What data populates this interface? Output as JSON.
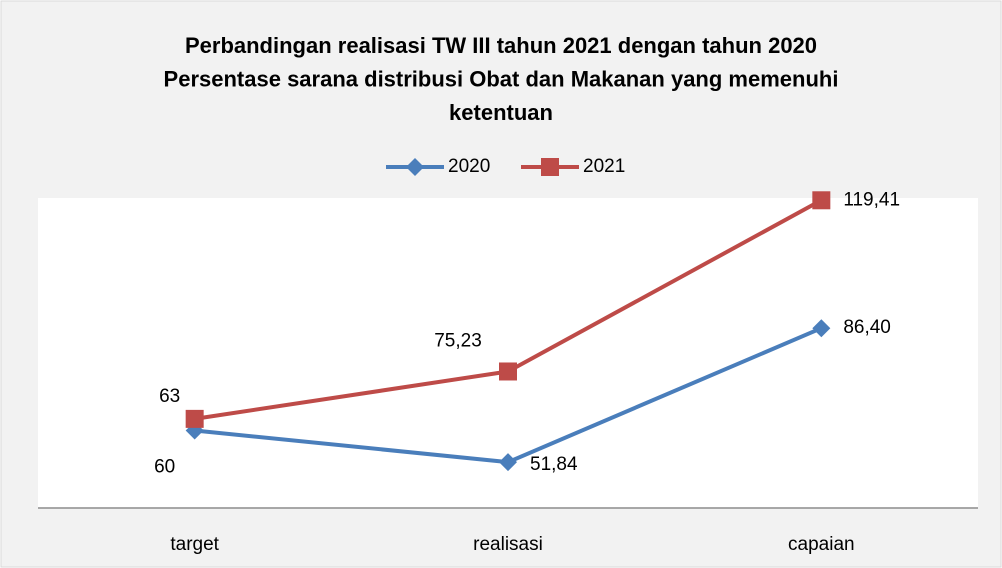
{
  "chart_data": {
    "type": "line",
    "title": [
      "Perbandingan realisasi TW III tahun 2021 dengan tahun 2020",
      "Persentase sarana distribusi Obat dan Makanan yang memenuhi",
      "ketentuan"
    ],
    "categories": [
      "target",
      "realisasi",
      "capaian"
    ],
    "series": [
      {
        "name": "2020",
        "color": "#4a7ebb",
        "marker": "diamond",
        "values": [
          60,
          51.84,
          86.4
        ],
        "value_labels": [
          "60",
          "51,84",
          "86,40"
        ]
      },
      {
        "name": "2021",
        "color": "#be4b48",
        "marker": "square",
        "values": [
          63,
          75.23,
          119.41
        ],
        "value_labels": [
          "63",
          "75,23",
          "119,41"
        ]
      }
    ],
    "ylim": [
      40,
      120
    ],
    "legend": "top"
  }
}
